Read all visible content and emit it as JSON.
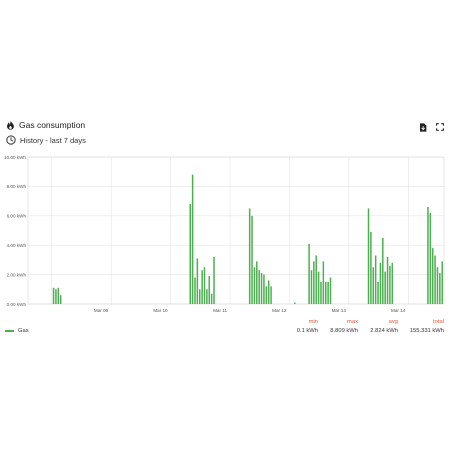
{
  "header": {
    "title": "Gas consumption",
    "subtitle": "History - last 7 days",
    "title_icon": "flame-icon",
    "subtitle_icon": "clock-icon",
    "action_icons": [
      "csv-download-icon",
      "fullscreen-icon"
    ]
  },
  "chart_data": {
    "type": "bar",
    "xlabel": "",
    "ylabel": "",
    "x_ticks": [
      "Mar 09",
      "Mar 10",
      "Mar 11",
      "Mar 12",
      "Mar 13",
      "Mar 14"
    ],
    "y_ticks": [
      "0.00 kWh",
      "2.00 kWh",
      "4.00 kWh",
      "6.00 kWh",
      "8.00 kWh",
      "10.00 kWh"
    ],
    "ylim": [
      0,
      10
    ],
    "grid": true,
    "legend_placement": "bottom-left",
    "color": "#4caf50",
    "series": [
      {
        "name": "Gas",
        "points": [
          [
            8.03,
            1.1
          ],
          [
            8.07,
            1.0
          ],
          [
            8.11,
            1.1
          ],
          [
            8.15,
            0.6
          ],
          [
            10.33,
            6.8
          ],
          [
            10.37,
            8.8
          ],
          [
            10.41,
            1.8
          ],
          [
            10.45,
            3.1
          ],
          [
            10.49,
            1.0
          ],
          [
            10.53,
            2.3
          ],
          [
            10.57,
            2.5
          ],
          [
            10.61,
            1.0
          ],
          [
            10.65,
            1.9
          ],
          [
            10.69,
            0.7
          ],
          [
            10.73,
            3.2
          ],
          [
            11.33,
            6.5
          ],
          [
            11.37,
            6.0
          ],
          [
            11.41,
            2.5
          ],
          [
            11.45,
            2.9
          ],
          [
            11.49,
            2.3
          ],
          [
            11.53,
            2.1
          ],
          [
            11.57,
            2.0
          ],
          [
            11.61,
            1.2
          ],
          [
            11.65,
            1.6
          ],
          [
            11.69,
            1.2
          ],
          [
            12.09,
            0.1
          ],
          [
            12.33,
            4.1
          ],
          [
            12.37,
            2.3
          ],
          [
            12.41,
            2.9
          ],
          [
            12.45,
            3.3
          ],
          [
            12.49,
            2.2
          ],
          [
            12.53,
            1.5
          ],
          [
            12.57,
            2.9
          ],
          [
            12.61,
            1.5
          ],
          [
            12.65,
            1.5
          ],
          [
            12.69,
            1.8
          ],
          [
            13.33,
            6.5
          ],
          [
            13.37,
            4.9
          ],
          [
            13.41,
            2.5
          ],
          [
            13.45,
            3.3
          ],
          [
            13.49,
            1.5
          ],
          [
            13.53,
            2.8
          ],
          [
            13.57,
            4.5
          ],
          [
            13.61,
            2.2
          ],
          [
            13.65,
            3.2
          ],
          [
            13.69,
            2.6
          ],
          [
            13.73,
            2.8
          ],
          [
            14.33,
            6.6
          ],
          [
            14.37,
            6.2
          ],
          [
            14.41,
            3.8
          ],
          [
            14.45,
            3.3
          ],
          [
            14.49,
            2.5
          ],
          [
            14.53,
            2.1
          ],
          [
            14.57,
            2.9
          ]
        ]
      }
    ]
  },
  "stats": {
    "headers": [
      "min",
      "max",
      "avg",
      "total"
    ],
    "values": [
      "0.1 kWh",
      "8.809 kWh",
      "2.824 kWh",
      "155.331 kWh"
    ]
  },
  "legend": {
    "label": "Gas"
  }
}
